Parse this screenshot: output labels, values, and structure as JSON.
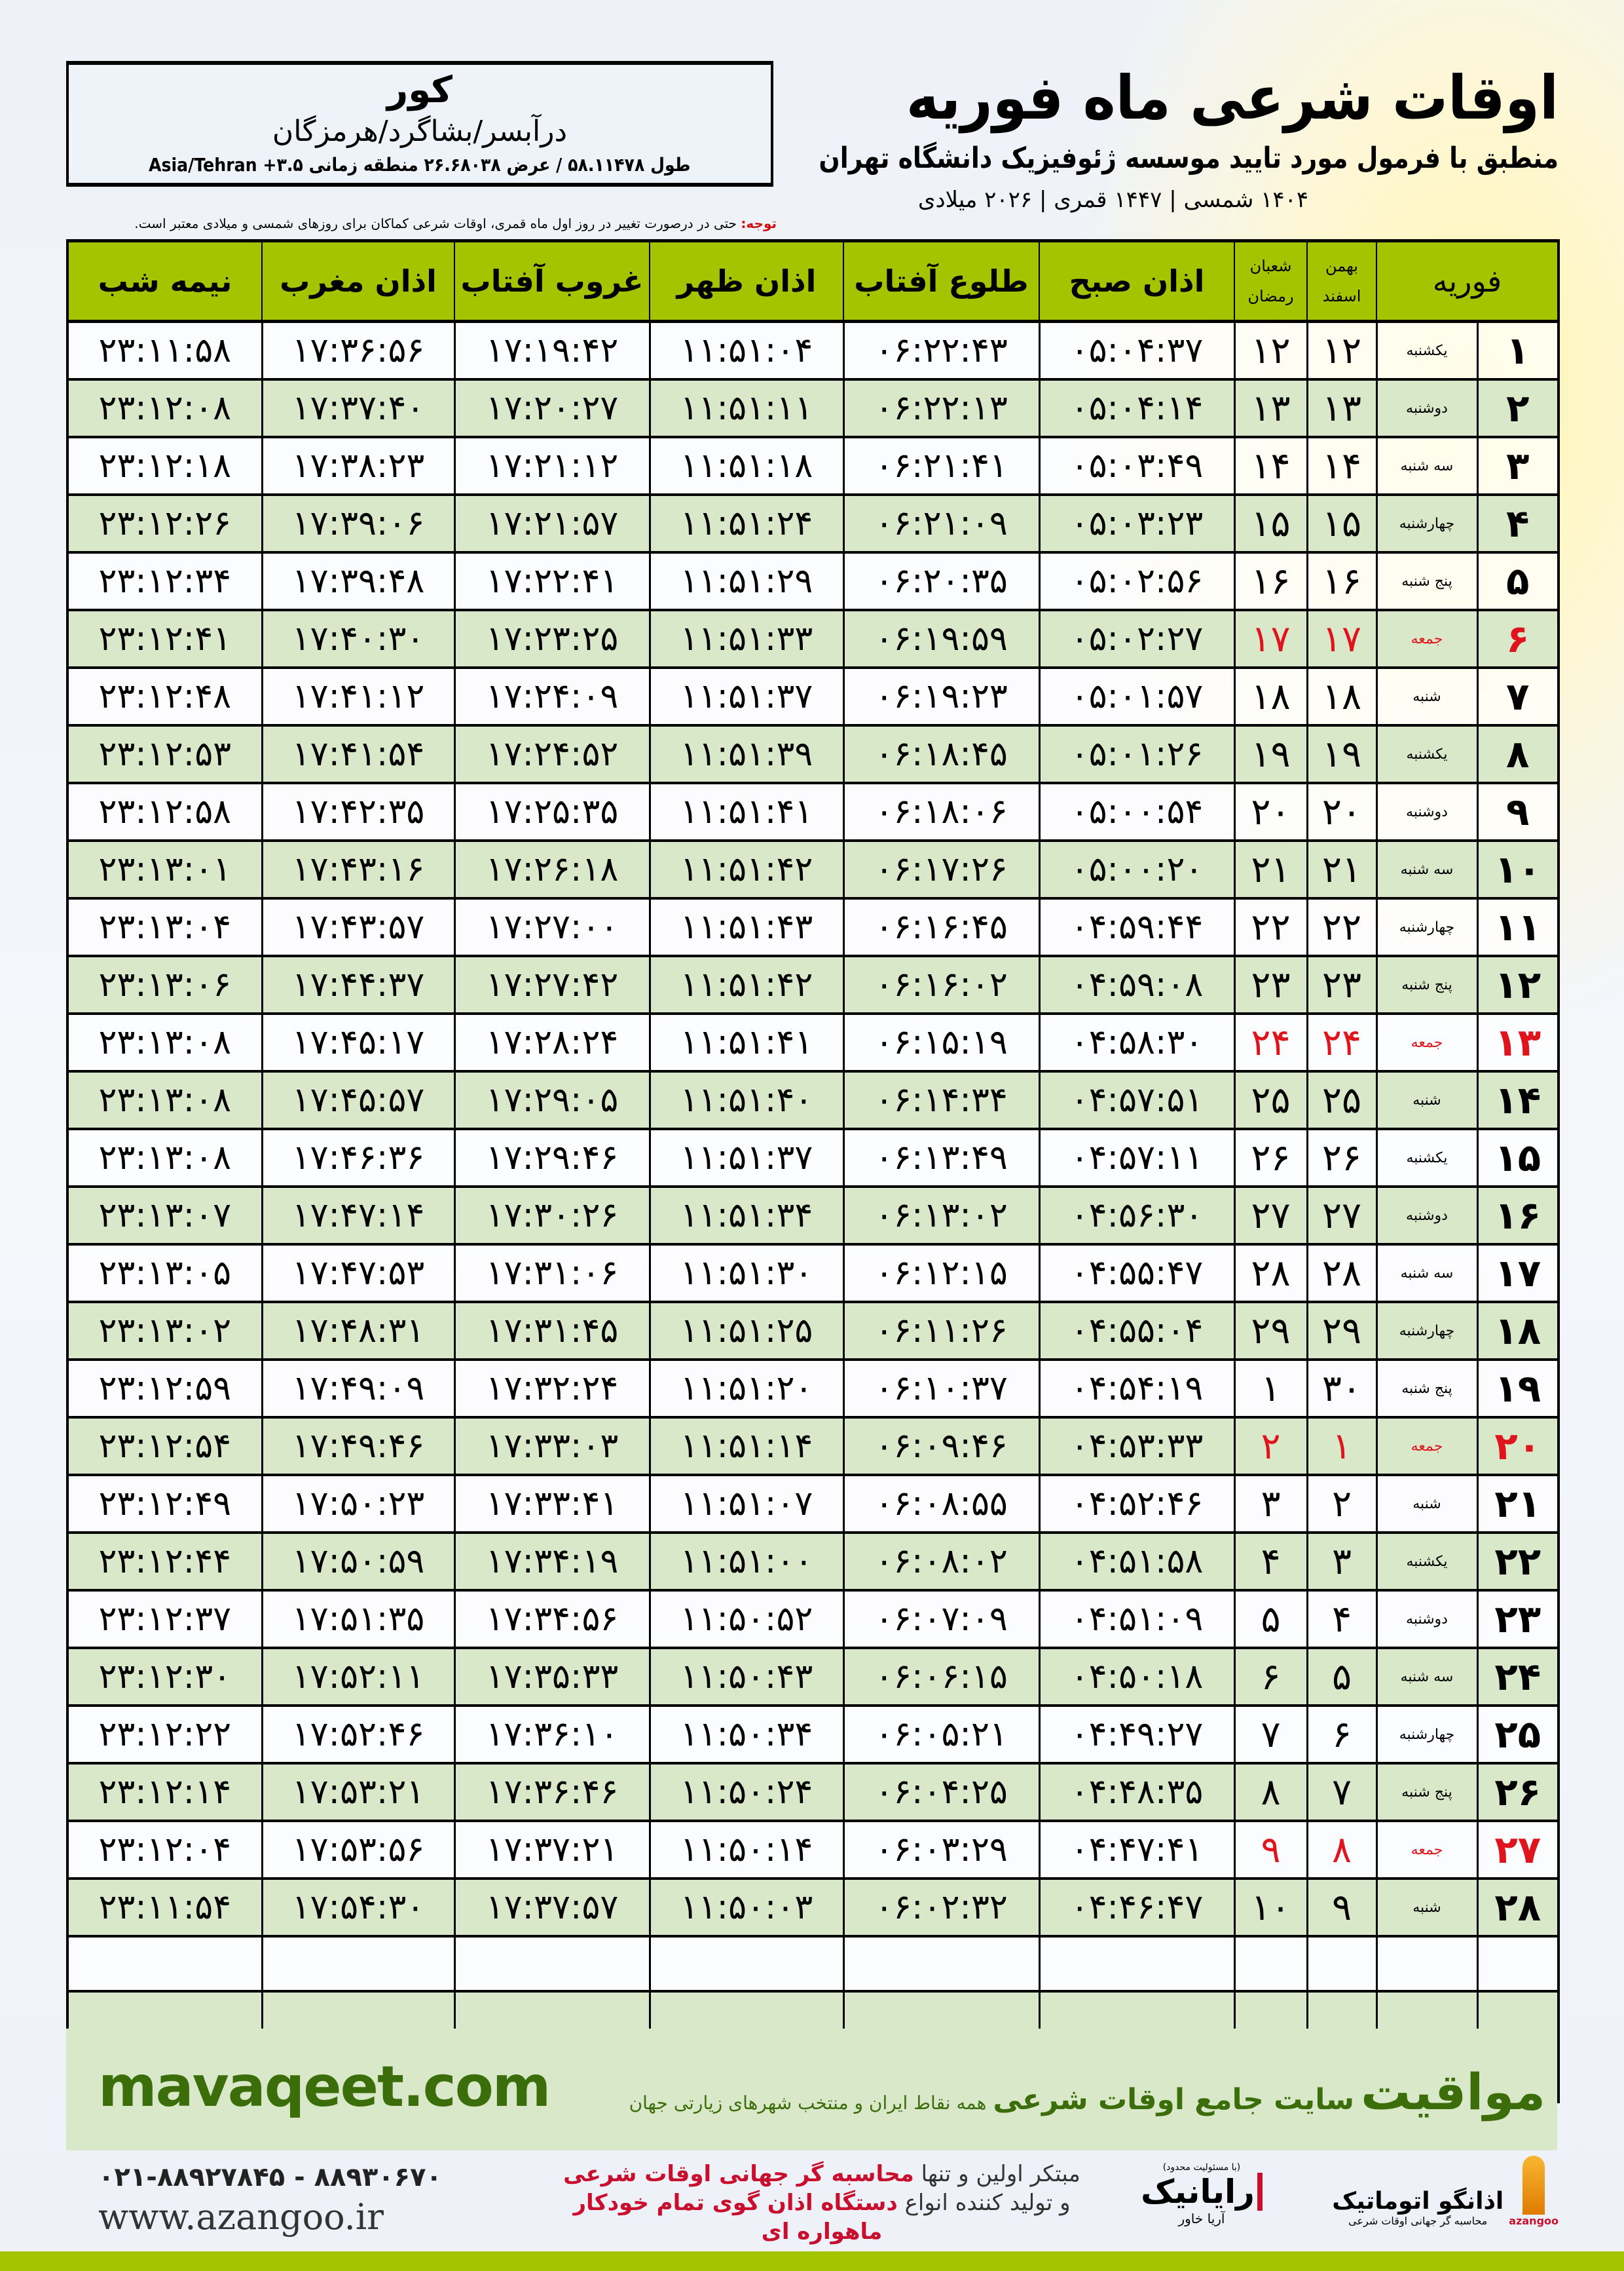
{
  "info": {
    "city": "کور",
    "region": "درآبسر/بشاگرد/هرمزگان",
    "coords": "طول ۵۸.۱۱۴۷۸ / عرض ۲۶.۶۸۰۳۸ منطقه زمانی ۳.۵+ Asia/Tehran"
  },
  "header": {
    "title": "اوقات شرعی ماه فوریه",
    "subtitle": "منطبق با فرمول مورد تایید موسسه ژئوفیزیک دانشگاه تهران",
    "dates": "۱۴۰۴ شمسی | ۱۴۴۷ قمری | ۲۰۲۶ میلادی"
  },
  "note": {
    "label": "توجه:",
    "text": " حتی در درصورت تغییر در روز اول ماه قمری، اوقات شرعی کماکان برای روزهای شمسی و میلادی معتبر است."
  },
  "table": {
    "headers": {
      "month": "فوریه",
      "shamsi_top": "بهمن",
      "shamsi_bottom": "اسفند",
      "hijri_top": "شعبان",
      "hijri_bottom": "رمضان",
      "sobh": "اذان صبح",
      "tolu": "طلوع آفتاب",
      "zohr": "اذان ظهر",
      "ghorub": "غروب آفتاب",
      "maghreb": "اذان مغرب",
      "nime": "نیمه شب"
    },
    "rows": [
      {
        "day": "۱",
        "weekday": "یکشنبه",
        "shamsi": "۱۲",
        "hijri": "۱۲",
        "sobh": "۰۵:۰۴:۳۷",
        "tolu": "۰۶:۲۲:۴۳",
        "zohr": "۱۱:۵۱:۰۴",
        "ghorub": "۱۷:۱۹:۴۲",
        "maghreb": "۱۷:۳۶:۵۶",
        "nime": "۲۳:۱۱:۵۸"
      },
      {
        "day": "۲",
        "weekday": "دوشنبه",
        "shamsi": "۱۳",
        "hijri": "۱۳",
        "sobh": "۰۵:۰۴:۱۴",
        "tolu": "۰۶:۲۲:۱۳",
        "zohr": "۱۱:۵۱:۱۱",
        "ghorub": "۱۷:۲۰:۲۷",
        "maghreb": "۱۷:۳۷:۴۰",
        "nime": "۲۳:۱۲:۰۸"
      },
      {
        "day": "۳",
        "weekday": "سه شنبه",
        "shamsi": "۱۴",
        "hijri": "۱۴",
        "sobh": "۰۵:۰۳:۴۹",
        "tolu": "۰۶:۲۱:۴۱",
        "zohr": "۱۱:۵۱:۱۸",
        "ghorub": "۱۷:۲۱:۱۲",
        "maghreb": "۱۷:۳۸:۲۳",
        "nime": "۲۳:۱۲:۱۸"
      },
      {
        "day": "۴",
        "weekday": "چهارشنبه",
        "shamsi": "۱۵",
        "hijri": "۱۵",
        "sobh": "۰۵:۰۳:۲۳",
        "tolu": "۰۶:۲۱:۰۹",
        "zohr": "۱۱:۵۱:۲۴",
        "ghorub": "۱۷:۲۱:۵۷",
        "maghreb": "۱۷:۳۹:۰۶",
        "nime": "۲۳:۱۲:۲۶"
      },
      {
        "day": "۵",
        "weekday": "پنج شنبه",
        "shamsi": "۱۶",
        "hijri": "۱۶",
        "sobh": "۰۵:۰۲:۵۶",
        "tolu": "۰۶:۲۰:۳۵",
        "zohr": "۱۱:۵۱:۲۹",
        "ghorub": "۱۷:۲۲:۴۱",
        "maghreb": "۱۷:۳۹:۴۸",
        "nime": "۲۳:۱۲:۳۴"
      },
      {
        "day": "۶",
        "weekday": "جمعه",
        "shamsi": "۱۷",
        "hijri": "۱۷",
        "sobh": "۰۵:۰۲:۲۷",
        "tolu": "۰۶:۱۹:۵۹",
        "zohr": "۱۱:۵۱:۳۳",
        "ghorub": "۱۷:۲۳:۲۵",
        "maghreb": "۱۷:۴۰:۳۰",
        "nime": "۲۳:۱۲:۴۱",
        "holiday": true
      },
      {
        "day": "۷",
        "weekday": "شنبه",
        "shamsi": "۱۸",
        "hijri": "۱۸",
        "sobh": "۰۵:۰۱:۵۷",
        "tolu": "۰۶:۱۹:۲۳",
        "zohr": "۱۱:۵۱:۳۷",
        "ghorub": "۱۷:۲۴:۰۹",
        "maghreb": "۱۷:۴۱:۱۲",
        "nime": "۲۳:۱۲:۴۸"
      },
      {
        "day": "۸",
        "weekday": "یکشنبه",
        "shamsi": "۱۹",
        "hijri": "۱۹",
        "sobh": "۰۵:۰۱:۲۶",
        "tolu": "۰۶:۱۸:۴۵",
        "zohr": "۱۱:۵۱:۳۹",
        "ghorub": "۱۷:۲۴:۵۲",
        "maghreb": "۱۷:۴۱:۵۴",
        "nime": "۲۳:۱۲:۵۳"
      },
      {
        "day": "۹",
        "weekday": "دوشنبه",
        "shamsi": "۲۰",
        "hijri": "۲۰",
        "sobh": "۰۵:۰۰:۵۴",
        "tolu": "۰۶:۱۸:۰۶",
        "zohr": "۱۱:۵۱:۴۱",
        "ghorub": "۱۷:۲۵:۳۵",
        "maghreb": "۱۷:۴۲:۳۵",
        "nime": "۲۳:۱۲:۵۸"
      },
      {
        "day": "۱۰",
        "weekday": "سه شنبه",
        "shamsi": "۲۱",
        "hijri": "۲۱",
        "sobh": "۰۵:۰۰:۲۰",
        "tolu": "۰۶:۱۷:۲۶",
        "zohr": "۱۱:۵۱:۴۲",
        "ghorub": "۱۷:۲۶:۱۸",
        "maghreb": "۱۷:۴۳:۱۶",
        "nime": "۲۳:۱۳:۰۱"
      },
      {
        "day": "۱۱",
        "weekday": "چهارشنبه",
        "shamsi": "۲۲",
        "hijri": "۲۲",
        "sobh": "۰۴:۵۹:۴۴",
        "tolu": "۰۶:۱۶:۴۵",
        "zohr": "۱۱:۵۱:۴۳",
        "ghorub": "۱۷:۲۷:۰۰",
        "maghreb": "۱۷:۴۳:۵۷",
        "nime": "۲۳:۱۳:۰۴"
      },
      {
        "day": "۱۲",
        "weekday": "پنج شنبه",
        "shamsi": "۲۳",
        "hijri": "۲۳",
        "sobh": "۰۴:۵۹:۰۸",
        "tolu": "۰۶:۱۶:۰۲",
        "zohr": "۱۱:۵۱:۴۲",
        "ghorub": "۱۷:۲۷:۴۲",
        "maghreb": "۱۷:۴۴:۳۷",
        "nime": "۲۳:۱۳:۰۶"
      },
      {
        "day": "۱۳",
        "weekday": "جمعه",
        "shamsi": "۲۴",
        "hijri": "۲۴",
        "sobh": "۰۴:۵۸:۳۰",
        "tolu": "۰۶:۱۵:۱۹",
        "zohr": "۱۱:۵۱:۴۱",
        "ghorub": "۱۷:۲۸:۲۴",
        "maghreb": "۱۷:۴۵:۱۷",
        "nime": "۲۳:۱۳:۰۸",
        "holiday": true
      },
      {
        "day": "۱۴",
        "weekday": "شنبه",
        "shamsi": "۲۵",
        "hijri": "۲۵",
        "sobh": "۰۴:۵۷:۵۱",
        "tolu": "۰۶:۱۴:۳۴",
        "zohr": "۱۱:۵۱:۴۰",
        "ghorub": "۱۷:۲۹:۰۵",
        "maghreb": "۱۷:۴۵:۵۷",
        "nime": "۲۳:۱۳:۰۸"
      },
      {
        "day": "۱۵",
        "weekday": "یکشنبه",
        "shamsi": "۲۶",
        "hijri": "۲۶",
        "sobh": "۰۴:۵۷:۱۱",
        "tolu": "۰۶:۱۳:۴۹",
        "zohr": "۱۱:۵۱:۳۷",
        "ghorub": "۱۷:۲۹:۴۶",
        "maghreb": "۱۷:۴۶:۳۶",
        "nime": "۲۳:۱۳:۰۸"
      },
      {
        "day": "۱۶",
        "weekday": "دوشنبه",
        "shamsi": "۲۷",
        "hijri": "۲۷",
        "sobh": "۰۴:۵۶:۳۰",
        "tolu": "۰۶:۱۳:۰۲",
        "zohr": "۱۱:۵۱:۳۴",
        "ghorub": "۱۷:۳۰:۲۶",
        "maghreb": "۱۷:۴۷:۱۴",
        "nime": "۲۳:۱۳:۰۷"
      },
      {
        "day": "۱۷",
        "weekday": "سه شنبه",
        "shamsi": "۲۸",
        "hijri": "۲۸",
        "sobh": "۰۴:۵۵:۴۷",
        "tolu": "۰۶:۱۲:۱۵",
        "zohr": "۱۱:۵۱:۳۰",
        "ghorub": "۱۷:۳۱:۰۶",
        "maghreb": "۱۷:۴۷:۵۳",
        "nime": "۲۳:۱۳:۰۵"
      },
      {
        "day": "۱۸",
        "weekday": "چهارشنبه",
        "shamsi": "۲۹",
        "hijri": "۲۹",
        "sobh": "۰۴:۵۵:۰۴",
        "tolu": "۰۶:۱۱:۲۶",
        "zohr": "۱۱:۵۱:۲۵",
        "ghorub": "۱۷:۳۱:۴۵",
        "maghreb": "۱۷:۴۸:۳۱",
        "nime": "۲۳:۱۳:۰۲"
      },
      {
        "day": "۱۹",
        "weekday": "پنج شنبه",
        "shamsi": "۳۰",
        "hijri": "۱",
        "sobh": "۰۴:۵۴:۱۹",
        "tolu": "۰۶:۱۰:۳۷",
        "zohr": "۱۱:۵۱:۲۰",
        "ghorub": "۱۷:۳۲:۲۴",
        "maghreb": "۱۷:۴۹:۰۹",
        "nime": "۲۳:۱۲:۵۹"
      },
      {
        "day": "۲۰",
        "weekday": "جمعه",
        "shamsi": "۱",
        "hijri": "۲",
        "sobh": "۰۴:۵۳:۳۳",
        "tolu": "۰۶:۰۹:۴۶",
        "zohr": "۱۱:۵۱:۱۴",
        "ghorub": "۱۷:۳۳:۰۳",
        "maghreb": "۱۷:۴۹:۴۶",
        "nime": "۲۳:۱۲:۵۴",
        "holiday": true
      },
      {
        "day": "۲۱",
        "weekday": "شنبه",
        "shamsi": "۲",
        "hijri": "۳",
        "sobh": "۰۴:۵۲:۴۶",
        "tolu": "۰۶:۰۸:۵۵",
        "zohr": "۱۱:۵۱:۰۷",
        "ghorub": "۱۷:۳۳:۴۱",
        "maghreb": "۱۷:۵۰:۲۳",
        "nime": "۲۳:۱۲:۴۹"
      },
      {
        "day": "۲۲",
        "weekday": "یکشنبه",
        "shamsi": "۳",
        "hijri": "۴",
        "sobh": "۰۴:۵۱:۵۸",
        "tolu": "۰۶:۰۸:۰۲",
        "zohr": "۱۱:۵۱:۰۰",
        "ghorub": "۱۷:۳۴:۱۹",
        "maghreb": "۱۷:۵۰:۵۹",
        "nime": "۲۳:۱۲:۴۴"
      },
      {
        "day": "۲۳",
        "weekday": "دوشنبه",
        "shamsi": "۴",
        "hijri": "۵",
        "sobh": "۰۴:۵۱:۰۹",
        "tolu": "۰۶:۰۷:۰۹",
        "zohr": "۱۱:۵۰:۵۲",
        "ghorub": "۱۷:۳۴:۵۶",
        "maghreb": "۱۷:۵۱:۳۵",
        "nime": "۲۳:۱۲:۳۷"
      },
      {
        "day": "۲۴",
        "weekday": "سه شنبه",
        "shamsi": "۵",
        "hijri": "۶",
        "sobh": "۰۴:۵۰:۱۸",
        "tolu": "۰۶:۰۶:۱۵",
        "zohr": "۱۱:۵۰:۴۳",
        "ghorub": "۱۷:۳۵:۳۳",
        "maghreb": "۱۷:۵۲:۱۱",
        "nime": "۲۳:۱۲:۳۰"
      },
      {
        "day": "۲۵",
        "weekday": "چهارشنبه",
        "shamsi": "۶",
        "hijri": "۷",
        "sobh": "۰۴:۴۹:۲۷",
        "tolu": "۰۶:۰۵:۲۱",
        "zohr": "۱۱:۵۰:۳۴",
        "ghorub": "۱۷:۳۶:۱۰",
        "maghreb": "۱۷:۵۲:۴۶",
        "nime": "۲۳:۱۲:۲۲"
      },
      {
        "day": "۲۶",
        "weekday": "پنج شنبه",
        "shamsi": "۷",
        "hijri": "۸",
        "sobh": "۰۴:۴۸:۳۵",
        "tolu": "۰۶:۰۴:۲۵",
        "zohr": "۱۱:۵۰:۲۴",
        "ghorub": "۱۷:۳۶:۴۶",
        "maghreb": "۱۷:۵۳:۲۱",
        "nime": "۲۳:۱۲:۱۴"
      },
      {
        "day": "۲۷",
        "weekday": "جمعه",
        "shamsi": "۸",
        "hijri": "۹",
        "sobh": "۰۴:۴۷:۴۱",
        "tolu": "۰۶:۰۳:۲۹",
        "zohr": "۱۱:۵۰:۱۴",
        "ghorub": "۱۷:۳۷:۲۱",
        "maghreb": "۱۷:۵۳:۵۶",
        "nime": "۲۳:۱۲:۰۴",
        "holiday": true
      },
      {
        "day": "۲۸",
        "weekday": "شنبه",
        "shamsi": "۹",
        "hijri": "۱۰",
        "sobh": "۰۴:۴۶:۴۷",
        "tolu": "۰۶:۰۲:۳۲",
        "zohr": "۱۱:۵۰:۰۳",
        "ghorub": "۱۷:۳۷:۵۷",
        "maghreb": "۱۷:۵۴:۳۰",
        "nime": "۲۳:۱۱:۵۴"
      }
    ]
  },
  "colors": {
    "header_green": "#a5c400",
    "row_green": "#d9e8c8",
    "holiday_red": "#e0141c",
    "brand_green": "#3b6e0a",
    "promo_red": "#c8102e"
  },
  "footer": {
    "brand": "مواقیت",
    "tagline": "سایت جامع اوقات شرعی",
    "tagline_sub": "همه نقاط ایران و منتخب شهرهای زیارتی جهان",
    "url": "mavaqeet.com",
    "phones": "۰۲۱-۸۸۹۲۷۸۴۵ - ۸۸۹۳۰۶۷۰",
    "website": "www.azangoo.ir",
    "promo_line1_a": "مبتکر اولین و تنها ",
    "promo_line1_b": "محاسبه گر جهانی اوقات شرعی",
    "promo_line2_a": "و تولید کننده انواع ",
    "promo_line2_b": "دستگاه اذان گوی تمام خودکار ماهواره ای",
    "rayanik_note": "(با مسئولیت محدود)",
    "rayanik": "رایانیک",
    "rayanik_sub": "آریا خاور",
    "azangoo": "اذانگو اتوماتیک",
    "azangoo_sub": "محاسبه گر جهانی اوقات شرعی",
    "azangoo_latin": "azangoo"
  }
}
